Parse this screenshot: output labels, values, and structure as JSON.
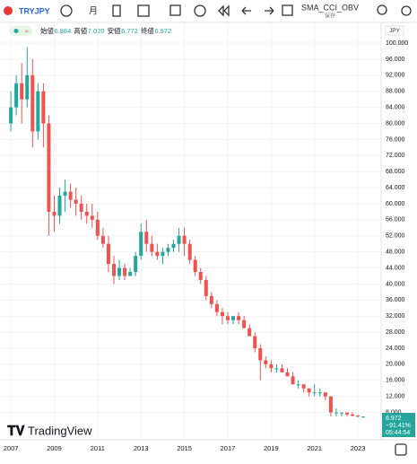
{
  "toolbar": {
    "symbol": "TRYJPY",
    "interval": "月",
    "indicator": "SMA_CCI_OBV",
    "save": "保存"
  },
  "header": {
    "labels": [
      "始値",
      "高値",
      "安値",
      "終値"
    ],
    "values": [
      "6.884",
      "7.020",
      "6.772",
      "6.972"
    ]
  },
  "price_box": {
    "price": "6.972",
    "change": "−91.41%",
    "countdown": "05:44:54"
  },
  "currency": "JPY",
  "logo": "TradingView",
  "chart_data": {
    "type": "candlestick",
    "up_color": "#26a69a",
    "down_color": "#ef5350",
    "grid": true,
    "x": [
      2007,
      2007.25,
      2007.5,
      2007.75,
      2008,
      2008.25,
      2008.5,
      2008.75,
      2009,
      2009.25,
      2009.5,
      2009.75,
      2010,
      2010.25,
      2010.5,
      2010.75,
      2011,
      2011.25,
      2011.5,
      2011.75,
      2012,
      2012.25,
      2012.5,
      2012.75,
      2013,
      2013.25,
      2013.5,
      2013.75,
      2014,
      2014.25,
      2014.5,
      2014.75,
      2015,
      2015.25,
      2015.5,
      2015.75,
      2016,
      2016.25,
      2016.5,
      2016.75,
      2017,
      2017.25,
      2017.5,
      2017.75,
      2018,
      2018.25,
      2018.5,
      2018.75,
      2019,
      2019.25,
      2019.5,
      2019.75,
      2020,
      2020.25,
      2020.5,
      2020.75,
      2021,
      2021.25,
      2021.5,
      2021.75,
      2022,
      2022.25,
      2022.5,
      2022.75,
      2023,
      2023.25
    ],
    "open": [
      80,
      84,
      90,
      86,
      92,
      78,
      88,
      80,
      58,
      57,
      62,
      63,
      61,
      60,
      58,
      57,
      56,
      52,
      50,
      45,
      42,
      44,
      42,
      43,
      47,
      53,
      50,
      48,
      47,
      48,
      49,
      50,
      52,
      50,
      46,
      43,
      41,
      37,
      35,
      33,
      32,
      31,
      32,
      31,
      29,
      27,
      24,
      21,
      20,
      19,
      19,
      18,
      17,
      15,
      15,
      14,
      13,
      13,
      13,
      12,
      8,
      8,
      8,
      7.5,
      7.2,
      6.884
    ],
    "high": [
      88,
      92,
      95,
      99,
      96,
      90,
      90,
      82,
      62,
      64,
      66,
      65,
      64,
      62,
      60,
      60,
      58,
      54,
      52,
      47,
      46,
      45,
      44,
      48,
      55,
      56,
      52,
      50,
      49,
      50,
      51,
      54,
      54,
      51,
      47,
      44,
      42,
      38,
      36,
      34,
      33,
      32,
      33,
      32,
      30,
      28,
      25,
      22,
      21,
      20,
      20,
      19,
      18,
      16,
      15,
      14,
      15,
      14,
      13,
      12,
      9,
      8,
      8,
      8,
      7.4,
      7.02
    ],
    "low": [
      78,
      82,
      80,
      84,
      74,
      76,
      74,
      52,
      53,
      55,
      58,
      59,
      57,
      56,
      55,
      54,
      51,
      49,
      43,
      40,
      41,
      41,
      42,
      42,
      46,
      48,
      47,
      46,
      45,
      47,
      48,
      48,
      47,
      45,
      42,
      40,
      36,
      34,
      32,
      30,
      30,
      30,
      30,
      29,
      27,
      23,
      16,
      19,
      18,
      18,
      18,
      17,
      15,
      14,
      13,
      12,
      12,
      12,
      11,
      7,
      7,
      7,
      7,
      7,
      6.8,
      6.772
    ],
    "close": [
      84,
      90,
      86,
      92,
      78,
      88,
      80,
      58,
      57,
      62,
      63,
      61,
      60,
      58,
      57,
      56,
      52,
      50,
      45,
      42,
      44,
      42,
      43,
      47,
      53,
      50,
      48,
      47,
      48,
      49,
      50,
      52,
      50,
      46,
      43,
      41,
      37,
      35,
      33,
      32,
      31,
      32,
      31,
      29,
      27,
      24,
      21,
      20,
      19,
      19,
      18,
      17,
      15,
      15,
      14,
      13,
      13,
      13,
      12,
      8,
      8,
      8,
      7.5,
      7.2,
      7,
      6.972
    ],
    "xlim": [
      2006.5,
      2024.07
    ],
    "xticks": [
      2007,
      2009,
      2011,
      2013,
      2015,
      2017,
      2019,
      2021,
      2023
    ],
    "ylim": [
      1.2,
      101.8
    ],
    "yticks": [
      {
        "value": 8,
        "label": "8.000"
      },
      {
        "value": 12,
        "label": "12.000"
      },
      {
        "value": 16,
        "label": "16.000"
      },
      {
        "value": 20,
        "label": "20.000"
      },
      {
        "value": 24,
        "label": "24.000"
      },
      {
        "value": 28,
        "label": "28.000"
      },
      {
        "value": 32,
        "label": "32.000"
      },
      {
        "value": 36,
        "label": "36.000"
      },
      {
        "value": 40,
        "label": "40.000"
      },
      {
        "value": 44,
        "label": "44.000"
      },
      {
        "value": 48,
        "label": "48.000"
      },
      {
        "value": 52,
        "label": "52.000"
      },
      {
        "value": 56,
        "label": "56.000"
      },
      {
        "value": 60,
        "label": "60.000"
      },
      {
        "value": 64,
        "label": "64.000"
      },
      {
        "value": 68,
        "label": "68.000"
      },
      {
        "value": 72,
        "label": "72.000"
      },
      {
        "value": 76,
        "label": "76.000"
      },
      {
        "value": 80,
        "label": "80.000"
      },
      {
        "value": 84,
        "label": "84.000"
      },
      {
        "value": 88,
        "label": "88.000"
      },
      {
        "value": 92,
        "label": "92.000"
      },
      {
        "value": 96,
        "label": "96.000"
      },
      {
        "value": 100,
        "label": "100.000"
      }
    ]
  }
}
